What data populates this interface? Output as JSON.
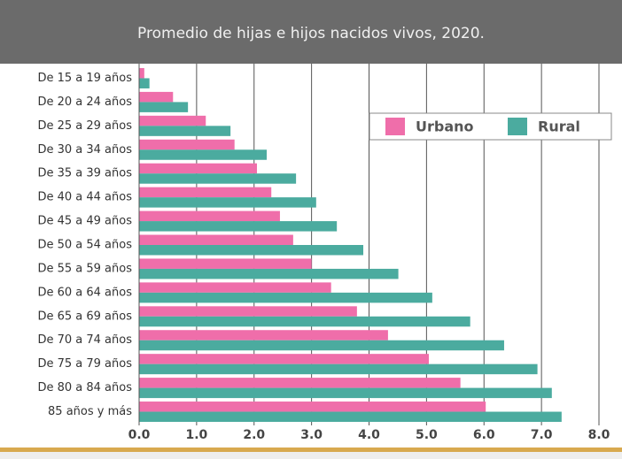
{
  "chart_data": {
    "type": "barh",
    "title": "Promedio de hijas e hijos nacidos vivos, 2020.",
    "categories": [
      "De 15 a 19 años",
      "De 20 a 24 años",
      "De 25 a 29 años",
      "De 30 a 34 años",
      "De 35 a 39 años",
      "De 40 a 44 años",
      "De 45 a 49 años",
      "De 50 a 54 años",
      "De 55 a 59 años",
      "De 60 a 64 años",
      "De 65 a 69 años",
      "De 70 a 74 años",
      "De 75 a 79 años",
      "De 80 a 84 años",
      "85 años y más"
    ],
    "series": [
      {
        "name": "Urbano",
        "color": "#ef6eaa",
        "values": [
          0.09,
          0.59,
          1.16,
          1.66,
          2.05,
          2.3,
          2.45,
          2.68,
          3.0,
          3.34,
          3.79,
          4.33,
          5.04,
          5.59,
          6.03
        ]
      },
      {
        "name": "Rural",
        "color": "#4bab9f",
        "values": [
          0.18,
          0.85,
          1.59,
          2.22,
          2.73,
          3.08,
          3.44,
          3.9,
          4.51,
          5.1,
          5.76,
          6.35,
          6.93,
          7.18,
          7.35
        ]
      }
    ],
    "xlim": [
      0,
      8
    ],
    "xticks": [
      {
        "value": 0,
        "label": "0.0"
      },
      {
        "value": 1,
        "label": "1.0"
      },
      {
        "value": 2,
        "label": "2.0"
      },
      {
        "value": 3,
        "label": "3.0"
      },
      {
        "value": 4,
        "label": "4.0"
      },
      {
        "value": 5,
        "label": "5.0"
      },
      {
        "value": 6,
        "label": "6.0"
      },
      {
        "value": 7,
        "label": "7.0"
      },
      {
        "value": 8,
        "label": "8.0"
      }
    ],
    "grid": true,
    "legend": "top-right"
  }
}
